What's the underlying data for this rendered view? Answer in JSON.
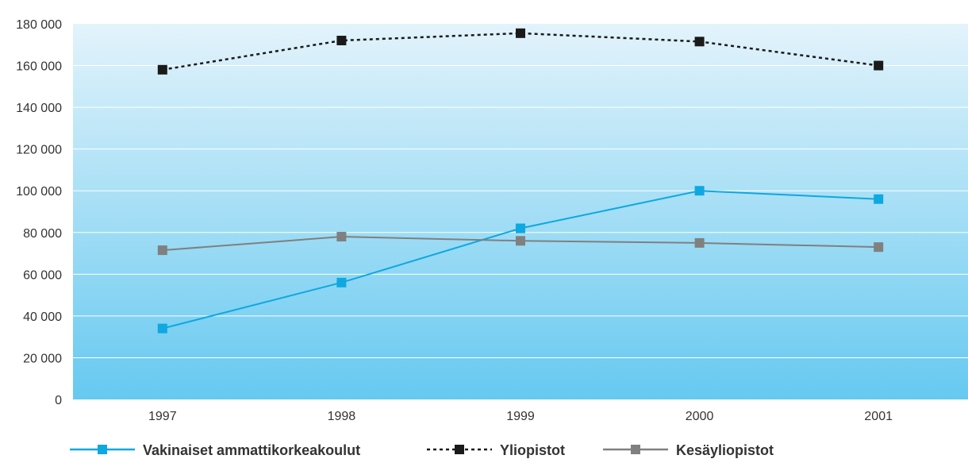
{
  "chart_data": {
    "type": "line",
    "title": "",
    "xlabel": "",
    "ylabel": "",
    "categories": [
      "1997",
      "1998",
      "1999",
      "2000",
      "2001"
    ],
    "ylim": [
      0,
      180000
    ],
    "yticks": [
      0,
      20000,
      40000,
      60000,
      80000,
      100000,
      120000,
      140000,
      160000,
      180000
    ],
    "ytick_labels": [
      "0",
      "20 000",
      "40 000",
      "60 000",
      "80 000",
      "100 000",
      "120 000",
      "140 000",
      "160 000",
      "180 000"
    ],
    "grid": true,
    "legend_position": "bottom",
    "series": [
      {
        "name": "Vakinaiset ammattikorkeakoulut",
        "values": [
          34000,
          56000,
          82000,
          100000,
          96000
        ],
        "color": "#0fa8e0",
        "style": "solid"
      },
      {
        "name": "Yliopistot",
        "values": [
          158000,
          172000,
          175500,
          171500,
          160000
        ],
        "color": "#1a1a1a",
        "style": "dotted"
      },
      {
        "name": "Kesäyliopistot",
        "values": [
          71500,
          78000,
          76000,
          75000,
          73000
        ],
        "color": "#808080",
        "style": "solid"
      }
    ],
    "background_gradient": [
      "#e3f3fb",
      "#66c9f0"
    ]
  }
}
